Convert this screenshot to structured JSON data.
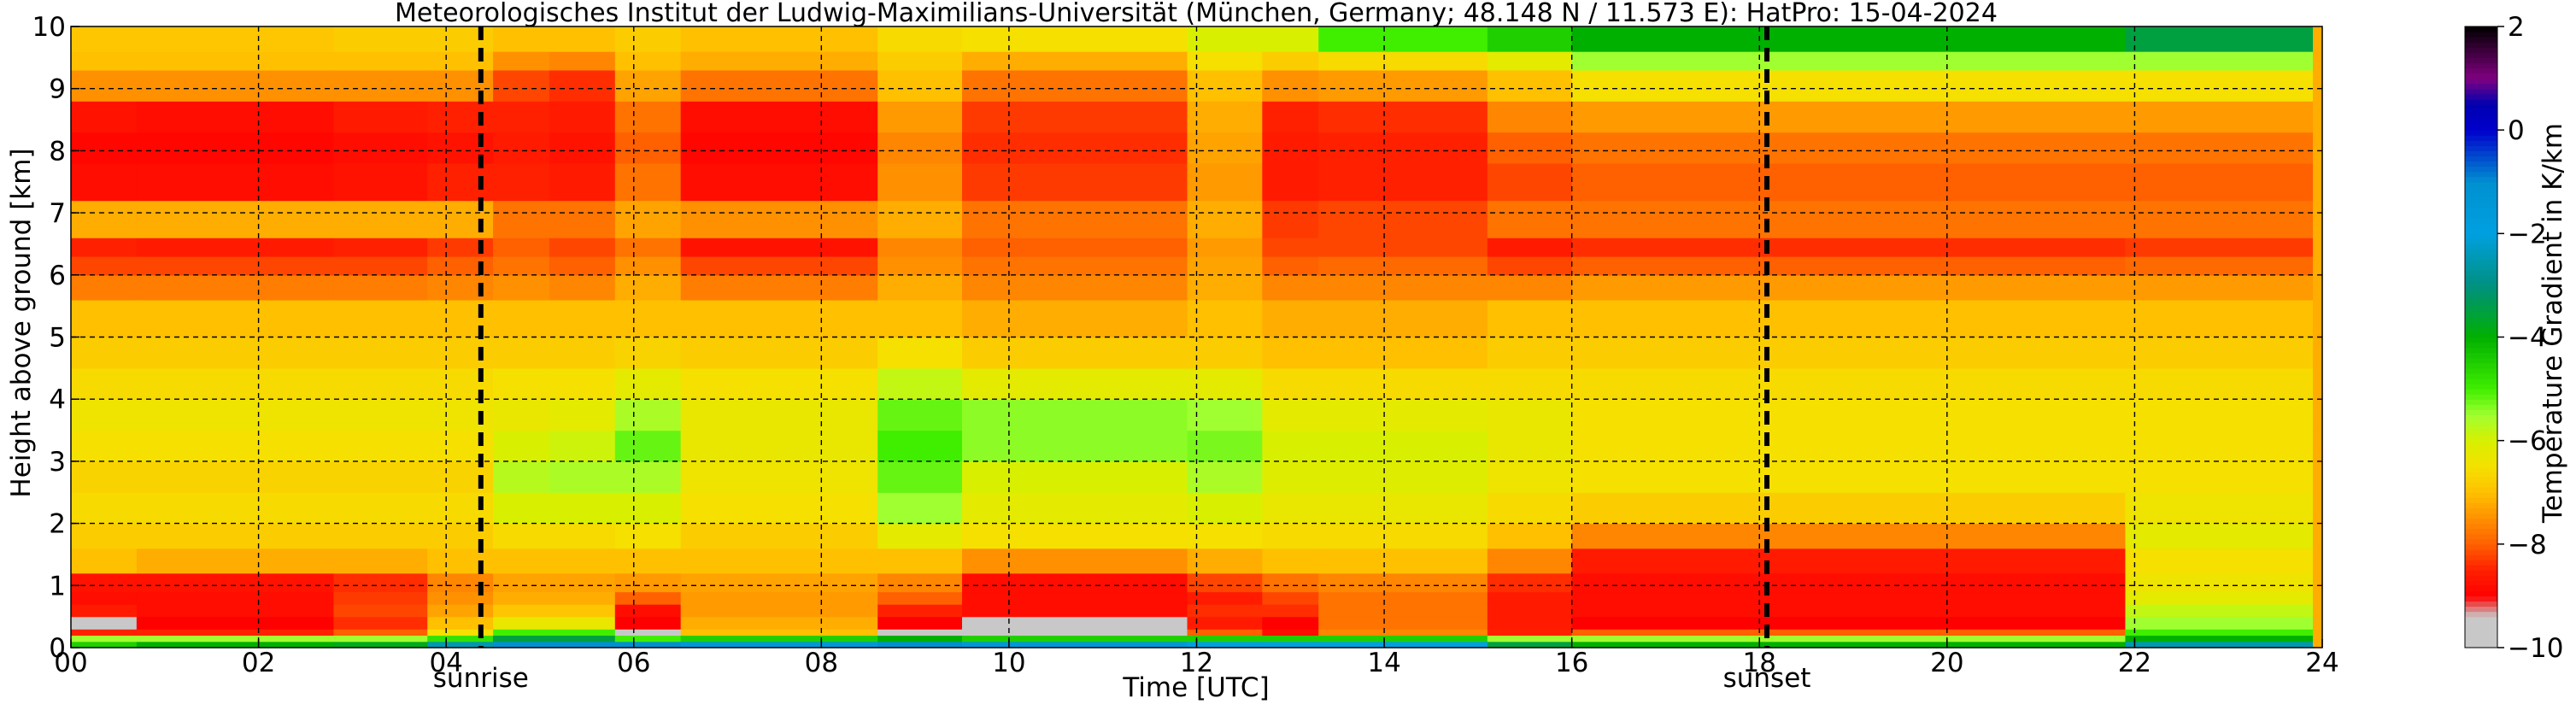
{
  "chart_data": {
    "type": "heatmap",
    "title": "Meteorologisches Institut der Ludwig-Maximilians-Universität (München, Germany; 48.148 N / 11.573 E):    HatPro: 15-04-2024",
    "xlabel": "Time [UTC]",
    "ylabel": "Height above ground [km]",
    "xlim": [
      0,
      24
    ],
    "ylim": [
      0,
      10
    ],
    "x_ticks": [
      "00",
      "02",
      "04",
      "06",
      "08",
      "10",
      "12",
      "14",
      "16",
      "18",
      "20",
      "22",
      "24"
    ],
    "y_ticks": [
      "0",
      "1",
      "2",
      "3",
      "4",
      "5",
      "6",
      "7",
      "8",
      "9",
      "10"
    ],
    "grid": true,
    "colorbar": {
      "label": "Temperature Gradient in K/km",
      "range": [
        -10,
        2
      ],
      "ticks": [
        "2",
        "0",
        "−2",
        "−4",
        "−6",
        "−8",
        "−10"
      ]
    },
    "annotations": [
      {
        "label": "sunrise",
        "x": 4.37
      },
      {
        "label": "sunset",
        "x": 18.08
      }
    ],
    "layer_bounds_km": [
      0,
      0.1,
      0.2,
      0.3,
      0.5,
      0.7,
      0.9,
      1.2,
      1.6,
      2.0,
      2.5,
      3.0,
      3.5,
      4.0,
      4.5,
      5.0,
      5.6,
      6.0,
      6.3,
      6.6,
      7.2,
      7.8,
      8.3,
      8.8,
      9.3,
      9.6,
      10.0
    ],
    "color_scale": [
      {
        "v": -10.0,
        "c": "#c8c8c8"
      },
      {
        "v": -9.4,
        "c": "#c8c8c8"
      },
      {
        "v": -9.0,
        "c": "#ff0000"
      },
      {
        "v": -8.5,
        "c": "#ff2000"
      },
      {
        "v": -8.0,
        "c": "#ff6000"
      },
      {
        "v": -7.5,
        "c": "#ff9000"
      },
      {
        "v": -7.0,
        "c": "#ffc000"
      },
      {
        "v": -6.5,
        "c": "#f5e000"
      },
      {
        "v": -6.0,
        "c": "#d8f000"
      },
      {
        "v": -5.5,
        "c": "#a0ff30"
      },
      {
        "v": -5.0,
        "c": "#40ee00"
      },
      {
        "v": -4.0,
        "c": "#00b000"
      },
      {
        "v": -3.0,
        "c": "#009080"
      },
      {
        "v": -2.0,
        "c": "#00a0e0"
      },
      {
        "v": -1.0,
        "c": "#0090d0"
      },
      {
        "v": 0.0,
        "c": "#0000cc"
      },
      {
        "v": 0.5,
        "c": "#0000b0"
      },
      {
        "v": 1.0,
        "c": "#800080"
      },
      {
        "v": 2.0,
        "c": "#000000"
      }
    ],
    "profiles": [
      {
        "t0": 0.0,
        "t1": 0.7,
        "v": [
          -4.5,
          -5.5,
          -8.5,
          -9.5,
          -8.6,
          -8.8,
          -8.7,
          -7.0,
          -6.8,
          -6.6,
          -6.7,
          -6.5,
          -6.4,
          -6.6,
          -6.8,
          -7.0,
          -7.7,
          -8.2,
          -8.5,
          -7.2,
          -8.8,
          -8.9,
          -8.7,
          -7.5,
          -7.0,
          -6.9
        ]
      },
      {
        "t0": 0.7,
        "t1": 2.8,
        "v": [
          -4.0,
          -5.5,
          -8.5,
          -9.0,
          -8.8,
          -8.8,
          -8.7,
          -7.2,
          -6.8,
          -6.6,
          -6.7,
          -6.5,
          -6.4,
          -6.6,
          -6.8,
          -7.0,
          -7.7,
          -8.2,
          -8.6,
          -7.2,
          -8.8,
          -8.9,
          -8.8,
          -7.5,
          -7.0,
          -6.9
        ]
      },
      {
        "t0": 2.8,
        "t1": 3.8,
        "v": [
          -3.8,
          -5.5,
          -8.0,
          -8.4,
          -8.2,
          -8.3,
          -8.4,
          -7.2,
          -6.8,
          -6.6,
          -6.7,
          -6.5,
          -6.4,
          -6.6,
          -6.8,
          -7.0,
          -7.7,
          -8.2,
          -8.5,
          -7.2,
          -8.7,
          -8.8,
          -8.6,
          -7.5,
          -7.0,
          -6.8
        ]
      },
      {
        "t0": 3.8,
        "t1": 4.5,
        "v": [
          -2.5,
          -4.8,
          -6.5,
          -7.0,
          -7.3,
          -7.5,
          -7.6,
          -7.0,
          -6.8,
          -6.6,
          -6.7,
          -6.5,
          -6.4,
          -6.6,
          -6.8,
          -7.0,
          -7.6,
          -8.0,
          -8.3,
          -7.2,
          -8.5,
          -8.7,
          -8.5,
          -7.5,
          -7.0,
          -6.8
        ]
      },
      {
        "t0": 4.5,
        "t1": 5.1,
        "v": [
          -1.0,
          -3.5,
          -5.0,
          -6.3,
          -6.9,
          -7.2,
          -7.3,
          -7.0,
          -6.6,
          -6.0,
          -5.7,
          -6.0,
          -6.3,
          -6.5,
          -6.8,
          -7.0,
          -7.5,
          -7.8,
          -8.0,
          -7.8,
          -8.5,
          -8.6,
          -8.5,
          -8.2,
          -7.5,
          -7.0
        ]
      },
      {
        "t0": 5.1,
        "t1": 5.8,
        "v": [
          -1.0,
          -3.5,
          -5.0,
          -6.3,
          -6.9,
          -7.2,
          -7.3,
          -7.0,
          -6.6,
          -6.0,
          -5.6,
          -5.9,
          -6.2,
          -6.5,
          -6.8,
          -7.0,
          -7.6,
          -8.0,
          -8.2,
          -7.8,
          -8.6,
          -8.7,
          -8.6,
          -8.4,
          -7.6,
          -7.0
        ]
      },
      {
        "t0": 5.8,
        "t1": 6.5,
        "v": [
          -1.0,
          -5.0,
          -9.8,
          -9.0,
          -8.8,
          -8.0,
          -7.4,
          -7.0,
          -6.5,
          -6.0,
          -5.6,
          -5.2,
          -5.6,
          -6.2,
          -6.7,
          -7.0,
          -7.2,
          -7.5,
          -7.8,
          -7.3,
          -7.8,
          -8.0,
          -7.8,
          -7.3,
          -7.0,
          -6.8
        ]
      },
      {
        "t0": 6.5,
        "t1": 8.6,
        "v": [
          -1.5,
          -4.5,
          -7.0,
          -7.2,
          -7.4,
          -7.4,
          -7.3,
          -7.0,
          -6.8,
          -6.5,
          -6.4,
          -6.3,
          -6.3,
          -6.5,
          -6.8,
          -7.0,
          -7.7,
          -8.2,
          -8.7,
          -7.5,
          -8.8,
          -8.9,
          -8.8,
          -7.8,
          -7.2,
          -7.0
        ]
      },
      {
        "t0": 8.6,
        "t1": 9.5,
        "v": [
          -1.0,
          -4.0,
          -9.8,
          -9.0,
          -8.5,
          -8.0,
          -7.6,
          -7.0,
          -6.2,
          -5.5,
          -5.2,
          -5.0,
          -5.2,
          -5.8,
          -6.5,
          -7.0,
          -7.2,
          -7.5,
          -7.6,
          -7.2,
          -7.5,
          -7.6,
          -7.4,
          -7.0,
          -6.8,
          -6.6
        ]
      },
      {
        "t0": 9.5,
        "t1": 11.9,
        "v": [
          -1.5,
          -4.5,
          -9.8,
          -9.8,
          -8.8,
          -8.8,
          -8.8,
          -7.5,
          -6.5,
          -6.2,
          -6.0,
          -5.4,
          -5.4,
          -6.2,
          -6.8,
          -7.2,
          -7.6,
          -7.8,
          -8.0,
          -7.8,
          -8.3,
          -8.4,
          -8.3,
          -7.8,
          -7.2,
          -6.5
        ]
      },
      {
        "t0": 11.9,
        "t1": 12.7,
        "v": [
          -2.0,
          -4.5,
          -8.0,
          -8.6,
          -8.4,
          -8.6,
          -8.2,
          -7.2,
          -6.5,
          -6.0,
          -5.6,
          -5.3,
          -5.5,
          -6.2,
          -6.8,
          -7.0,
          -7.2,
          -7.3,
          -7.4,
          -7.2,
          -7.4,
          -7.3,
          -7.2,
          -7.0,
          -6.5,
          -6.0
        ]
      },
      {
        "t0": 12.7,
        "t1": 13.3,
        "v": [
          -2.0,
          -4.5,
          -8.8,
          -9.0,
          -8.4,
          -8.2,
          -7.8,
          -7.0,
          -6.6,
          -6.3,
          -6.1,
          -6.0,
          -6.2,
          -6.6,
          -7.0,
          -7.2,
          -7.6,
          -8.0,
          -8.2,
          -8.3,
          -8.6,
          -8.6,
          -8.5,
          -7.5,
          -6.8,
          -6.0
        ]
      },
      {
        "t0": 13.3,
        "t1": 15.1,
        "v": [
          -2.0,
          -4.5,
          -7.6,
          -7.8,
          -7.8,
          -7.8,
          -7.6,
          -7.0,
          -6.6,
          -6.3,
          -6.1,
          -6.0,
          -6.2,
          -6.6,
          -7.0,
          -7.2,
          -7.6,
          -7.9,
          -8.2,
          -8.2,
          -8.5,
          -8.5,
          -8.4,
          -7.4,
          -6.6,
          -5.0
        ]
      },
      {
        "t0": 15.1,
        "t1": 16.0,
        "v": [
          -3.5,
          -5.5,
          -8.5,
          -8.6,
          -8.6,
          -8.6,
          -8.4,
          -7.6,
          -7.0,
          -6.6,
          -6.4,
          -6.3,
          -6.3,
          -6.6,
          -6.8,
          -7.0,
          -7.6,
          -8.2,
          -8.6,
          -7.8,
          -8.2,
          -8.0,
          -7.6,
          -7.0,
          -6.2,
          -4.5
        ]
      },
      {
        "t0": 16.0,
        "t1": 21.9,
        "v": [
          -4.0,
          -5.5,
          -8.0,
          -9.0,
          -8.8,
          -8.8,
          -8.8,
          -8.6,
          -7.6,
          -6.8,
          -6.5,
          -6.5,
          -6.5,
          -6.6,
          -6.8,
          -7.0,
          -7.4,
          -8.0,
          -8.4,
          -7.8,
          -8.0,
          -7.8,
          -7.4,
          -6.5,
          -5.5,
          -4.0
        ]
      },
      {
        "t0": 21.9,
        "t1": 23.9,
        "v": [
          -2.5,
          -4.0,
          -5.0,
          -5.5,
          -5.8,
          -6.2,
          -6.4,
          -6.5,
          -6.2,
          -6.4,
          -6.5,
          -6.5,
          -6.5,
          -6.6,
          -6.8,
          -7.0,
          -7.4,
          -7.9,
          -8.3,
          -7.8,
          -8.0,
          -7.8,
          -7.4,
          -6.5,
          -5.5,
          -3.5
        ]
      },
      {
        "t0": 23.9,
        "t1": 24.0,
        "v": [
          -7.2,
          -7.2,
          -7.2,
          -7.2,
          -7.2,
          -7.2,
          -7.2,
          -7.2,
          -7.2,
          -7.2,
          -7.2,
          -7.2,
          -7.2,
          -7.2,
          -7.2,
          -7.2,
          -7.2,
          -7.2,
          -7.2,
          -7.2,
          -7.2,
          -7.2,
          -7.2,
          -7.2,
          -7.2,
          -7.2
        ]
      }
    ]
  }
}
